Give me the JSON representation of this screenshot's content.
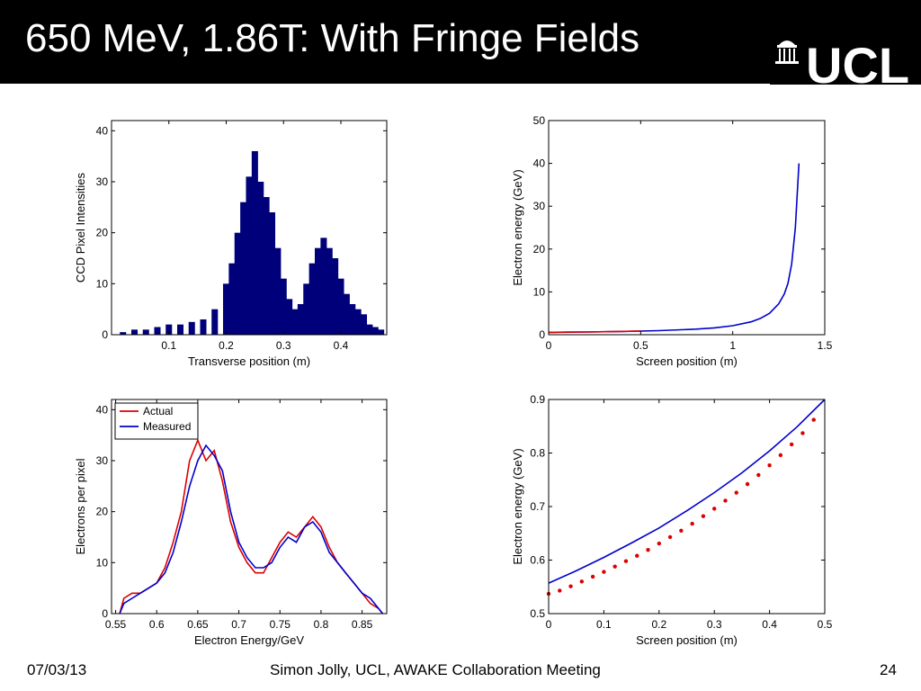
{
  "slide": {
    "title": "650 MeV, 1.86T: With Fringe Fields",
    "logo_text": "UCL",
    "footer_date": "07/03/13",
    "footer_center": "Simon Jolly, UCL, AWAKE Collaboration Meeting",
    "page_number": "24"
  },
  "colors": {
    "header": "#000000",
    "blue": "#0000cc",
    "navy": "#00007a",
    "red": "#dd0000"
  },
  "chart_data": [
    {
      "id": "ccd",
      "type": "bar",
      "title": "",
      "xlabel": "Transverse position (m)",
      "ylabel": "CCD Pixel Intensities",
      "xlim": [
        0,
        0.48
      ],
      "ylim": [
        0,
        42
      ],
      "xticks": [
        0.1,
        0.2,
        0.3,
        0.4
      ],
      "xtick_labels": [
        "0.1",
        "0.2",
        "0.3",
        "0.4"
      ],
      "yticks": [
        0,
        10,
        20,
        30,
        40
      ],
      "ytick_labels": [
        "0",
        "10",
        "20",
        "30",
        "40"
      ],
      "series": [
        {
          "color": "#00007a",
          "x": [
            0.02,
            0.04,
            0.06,
            0.08,
            0.1,
            0.12,
            0.14,
            0.16,
            0.18,
            0.2,
            0.21,
            0.22,
            0.23,
            0.24,
            0.25,
            0.26,
            0.27,
            0.28,
            0.29,
            0.3,
            0.31,
            0.32,
            0.33,
            0.34,
            0.35,
            0.36,
            0.37,
            0.38,
            0.39,
            0.4,
            0.41,
            0.42,
            0.43,
            0.44,
            0.45,
            0.46,
            0.47
          ],
          "values": [
            0.5,
            1,
            1,
            1.5,
            2,
            2,
            2.5,
            3,
            5,
            10,
            14,
            20,
            26,
            31,
            36,
            30,
            27,
            24,
            17,
            11,
            7,
            5,
            6,
            10,
            14,
            17,
            19,
            17,
            15,
            11,
            8,
            6,
            5,
            4,
            2,
            1.5,
            1
          ]
        }
      ]
    },
    {
      "id": "energy-vs-screen",
      "type": "line",
      "title": "",
      "xlabel": "Screen position (m)",
      "ylabel": "Electron energy (GeV)",
      "xlim": [
        0,
        1.5
      ],
      "ylim": [
        0,
        50
      ],
      "xticks": [
        0,
        0.5,
        1,
        1.5
      ],
      "xtick_labels": [
        "0",
        "0.5",
        "1",
        "1.5"
      ],
      "yticks": [
        0,
        10,
        20,
        30,
        40,
        50
      ],
      "ytick_labels": [
        "0",
        "10",
        "20",
        "30",
        "40",
        "50"
      ],
      "series": [
        {
          "color": "#0000cc",
          "x": [
            0,
            0.2,
            0.4,
            0.6,
            0.8,
            0.9,
            1.0,
            1.1,
            1.15,
            1.2,
            1.25,
            1.28,
            1.3,
            1.32,
            1.34,
            1.36
          ],
          "values": [
            0.55,
            0.62,
            0.75,
            0.95,
            1.3,
            1.6,
            2.1,
            3.0,
            3.8,
            5.0,
            7.2,
            9.5,
            12.0,
            16.5,
            25.0,
            40.0
          ]
        },
        {
          "color": "#dd0000",
          "x": [
            0,
            0.1,
            0.2,
            0.3,
            0.4,
            0.5
          ],
          "values": [
            0.54,
            0.6,
            0.64,
            0.7,
            0.78,
            0.87
          ]
        }
      ]
    },
    {
      "id": "electrons-per-pixel",
      "type": "line",
      "title": "",
      "xlabel": "Electron Energy/GeV",
      "ylabel": "Electrons per pixel",
      "xlim": [
        0.545,
        0.88
      ],
      "ylim": [
        0,
        42
      ],
      "xticks": [
        0.55,
        0.6,
        0.65,
        0.7,
        0.75,
        0.8,
        0.85
      ],
      "xtick_labels": [
        "0.55",
        "0.6",
        "0.65",
        "0.7",
        "0.75",
        "0.8",
        "0.85"
      ],
      "yticks": [
        0,
        10,
        20,
        30,
        40
      ],
      "ytick_labels": [
        "0",
        "10",
        "20",
        "30",
        "40"
      ],
      "legend": {
        "position": "top-left",
        "entries": [
          "Actual",
          "Measured"
        ]
      },
      "series": [
        {
          "name": "Actual",
          "color": "#dd0000",
          "x": [
            0.555,
            0.56,
            0.57,
            0.58,
            0.59,
            0.6,
            0.61,
            0.62,
            0.63,
            0.64,
            0.65,
            0.66,
            0.67,
            0.68,
            0.69,
            0.7,
            0.71,
            0.72,
            0.73,
            0.74,
            0.75,
            0.76,
            0.77,
            0.78,
            0.79,
            0.8,
            0.81,
            0.82,
            0.83,
            0.84,
            0.85,
            0.86,
            0.87,
            0.875
          ],
          "values": [
            0,
            3,
            4,
            4,
            5,
            6,
            9,
            14,
            20,
            30,
            34,
            30,
            32,
            26,
            18,
            13,
            10,
            8,
            8,
            11,
            14,
            16,
            15,
            17,
            19,
            17,
            13,
            10,
            8,
            6,
            4,
            2,
            1,
            0
          ]
        },
        {
          "name": "Measured",
          "color": "#0000cc",
          "x": [
            0.555,
            0.56,
            0.57,
            0.58,
            0.59,
            0.6,
            0.61,
            0.62,
            0.63,
            0.64,
            0.65,
            0.66,
            0.67,
            0.68,
            0.69,
            0.7,
            0.71,
            0.72,
            0.73,
            0.74,
            0.75,
            0.76,
            0.77,
            0.78,
            0.79,
            0.8,
            0.81,
            0.82,
            0.83,
            0.84,
            0.85,
            0.86,
            0.87,
            0.875
          ],
          "values": [
            0,
            2,
            3,
            4,
            5,
            6,
            8,
            12,
            18,
            25,
            30,
            33,
            31,
            28,
            20,
            14,
            11,
            9,
            9,
            10,
            13,
            15,
            14,
            17,
            18,
            16,
            12,
            10,
            8,
            6,
            4,
            3,
            1,
            0
          ]
        }
      ]
    },
    {
      "id": "energy-vs-screen-zoom",
      "type": "scatter",
      "title": "",
      "xlabel": "Screen position (m)",
      "ylabel": "Electron energy (GeV)",
      "xlim": [
        0,
        0.5
      ],
      "ylim": [
        0.5,
        0.9
      ],
      "xticks": [
        0,
        0.1,
        0.2,
        0.3,
        0.4,
        0.5
      ],
      "xtick_labels": [
        "0",
        "0.1",
        "0.2",
        "0.3",
        "0.4",
        "0.5"
      ],
      "yticks": [
        0.5,
        0.6,
        0.7,
        0.8,
        0.9
      ],
      "ytick_labels": [
        "0.5",
        "0.6",
        "0.7",
        "0.8",
        "0.9"
      ],
      "series": [
        {
          "color": "#0000cc",
          "type": "line",
          "x": [
            0,
            0.05,
            0.1,
            0.15,
            0.2,
            0.25,
            0.3,
            0.35,
            0.4,
            0.45,
            0.5
          ],
          "values": [
            0.557,
            0.58,
            0.605,
            0.632,
            0.66,
            0.692,
            0.726,
            0.763,
            0.804,
            0.849,
            0.9
          ]
        },
        {
          "color": "#dd0000",
          "type": "scatter",
          "x": [
            0,
            0.02,
            0.04,
            0.06,
            0.08,
            0.1,
            0.12,
            0.14,
            0.16,
            0.18,
            0.2,
            0.22,
            0.24,
            0.26,
            0.28,
            0.3,
            0.32,
            0.34,
            0.36,
            0.38,
            0.4,
            0.42,
            0.44,
            0.46,
            0.48
          ],
          "values": [
            0.537,
            0.543,
            0.551,
            0.56,
            0.569,
            0.578,
            0.588,
            0.598,
            0.608,
            0.619,
            0.631,
            0.643,
            0.655,
            0.668,
            0.682,
            0.696,
            0.711,
            0.726,
            0.742,
            0.759,
            0.777,
            0.796,
            0.816,
            0.837,
            0.862
          ]
        }
      ]
    }
  ]
}
